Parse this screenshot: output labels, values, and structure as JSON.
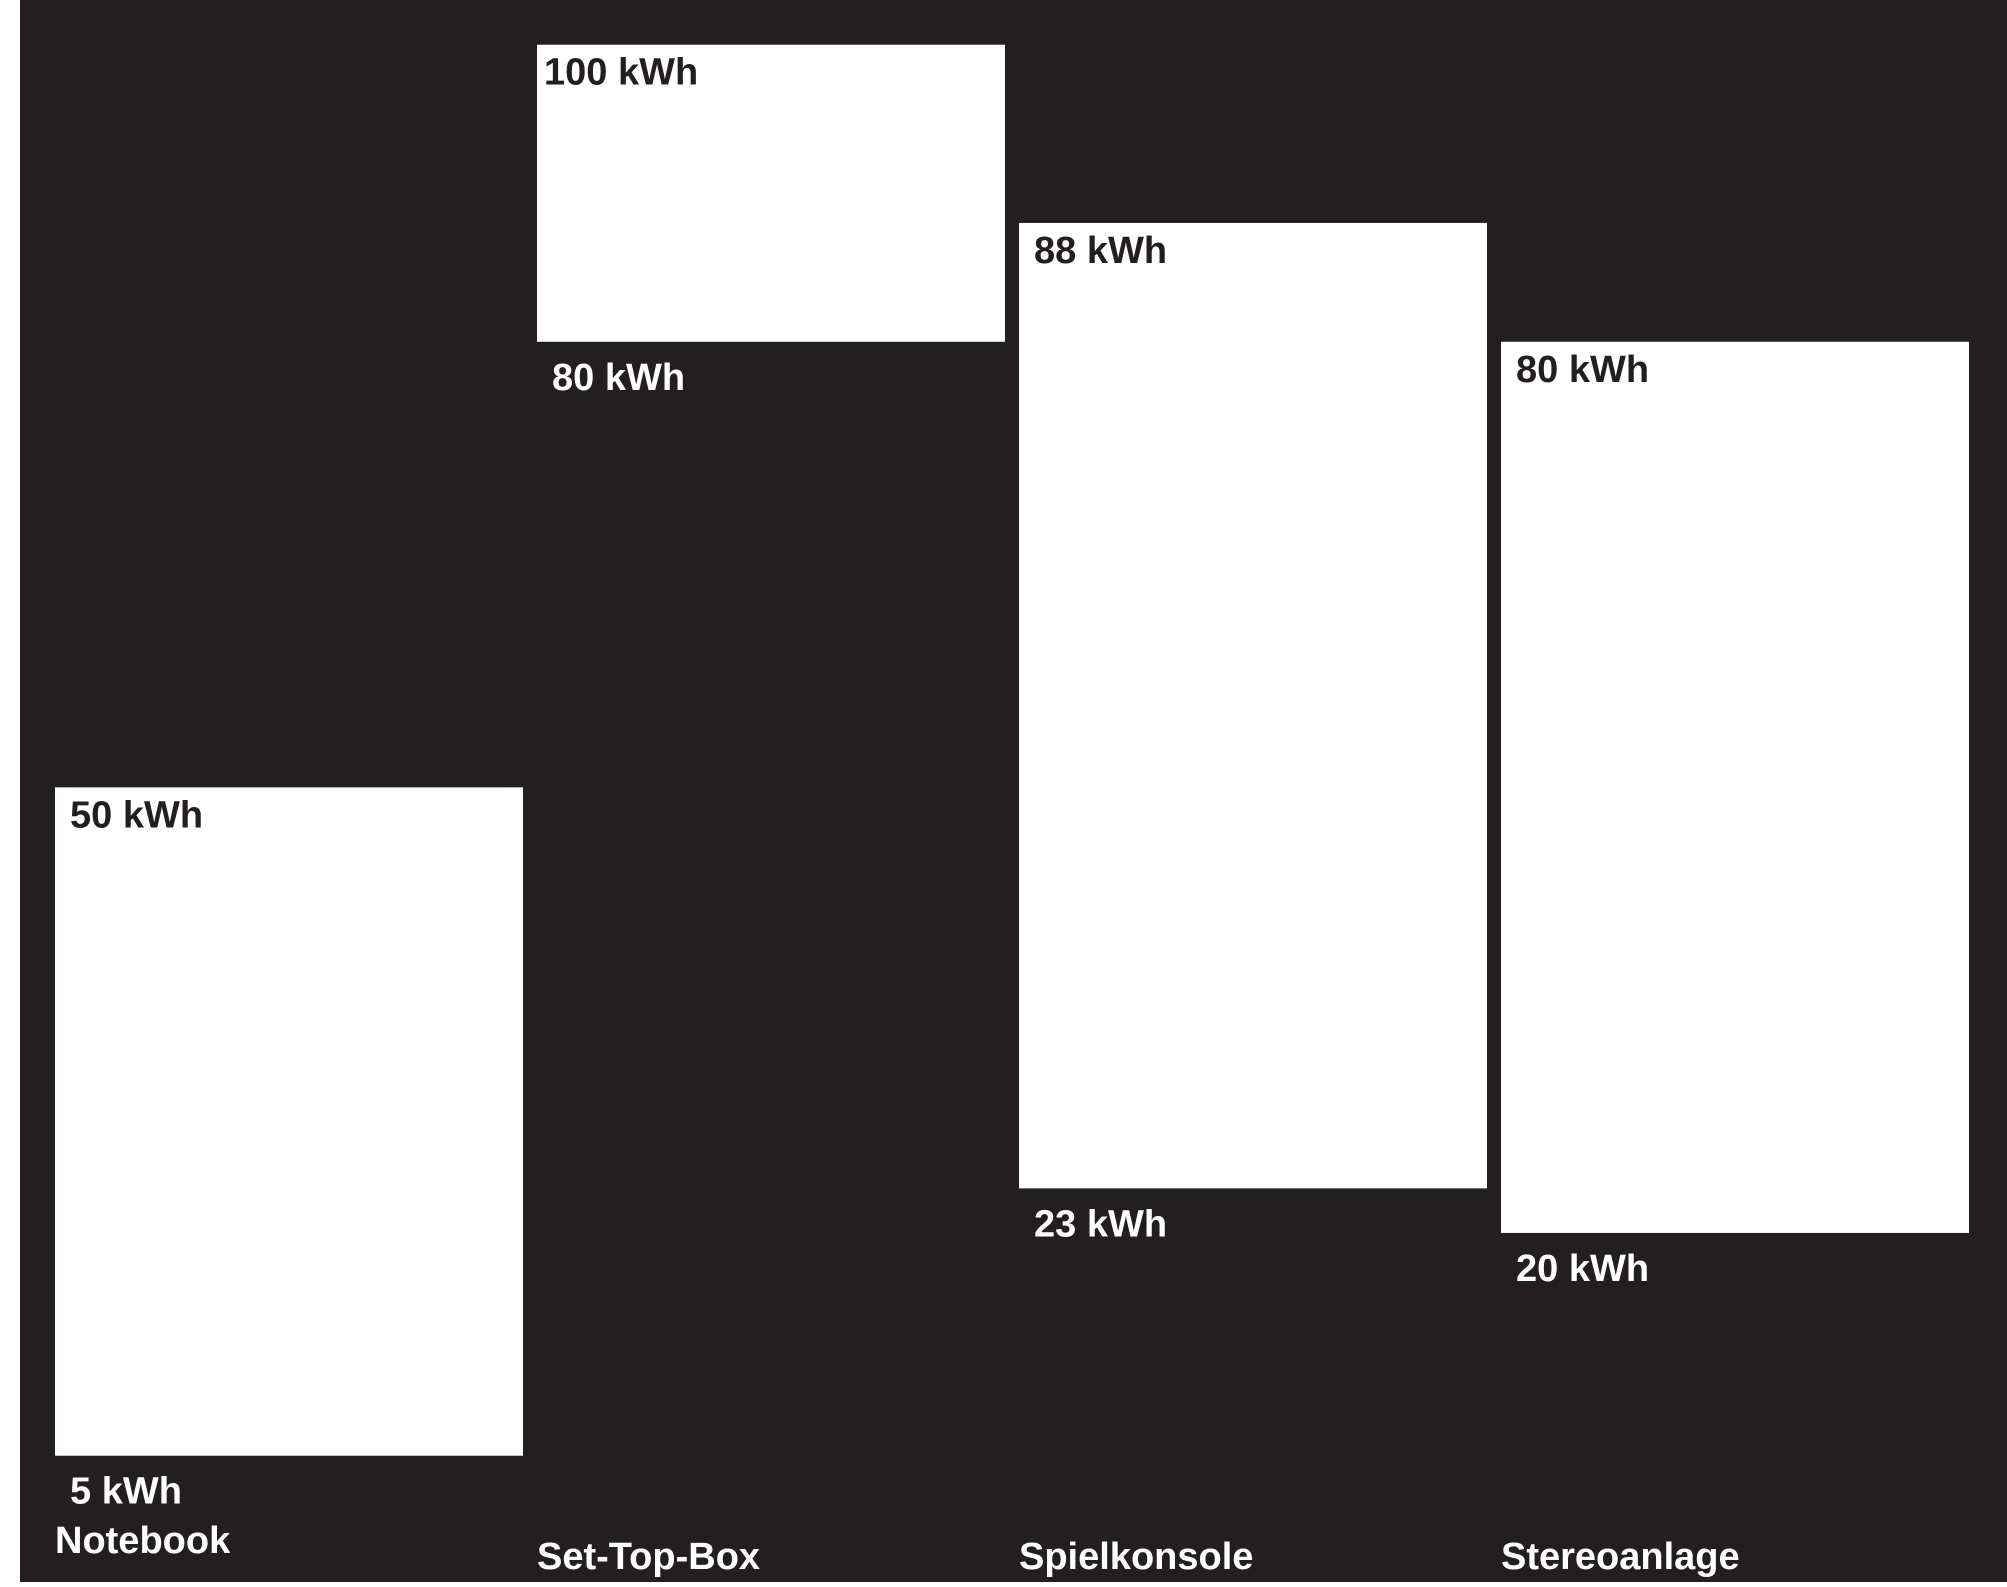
{
  "colors": {
    "background": "#231f20",
    "bar": "#ffffff",
    "label_on_bar": "#231f20",
    "label_on_background": "#ffffff"
  },
  "chart_data": {
    "type": "bar",
    "variant": "floating-range",
    "categories": [
      "Notebook",
      "Set-Top-Box",
      "Spielkonsole",
      "Stereoanlage"
    ],
    "series": [
      {
        "low": [
          5,
          80,
          23,
          20
        ],
        "high": [
          50,
          100,
          88,
          80
        ],
        "low_labels": [
          "5 kWh",
          "80 kWh",
          "23 kWh",
          "20 kWh"
        ],
        "high_labels": [
          "50 kWh",
          "100 kWh",
          "88 kWh",
          "80 kWh"
        ]
      }
    ],
    "ylim": [
      0,
      102
    ],
    "grid": false,
    "legend": "none"
  }
}
